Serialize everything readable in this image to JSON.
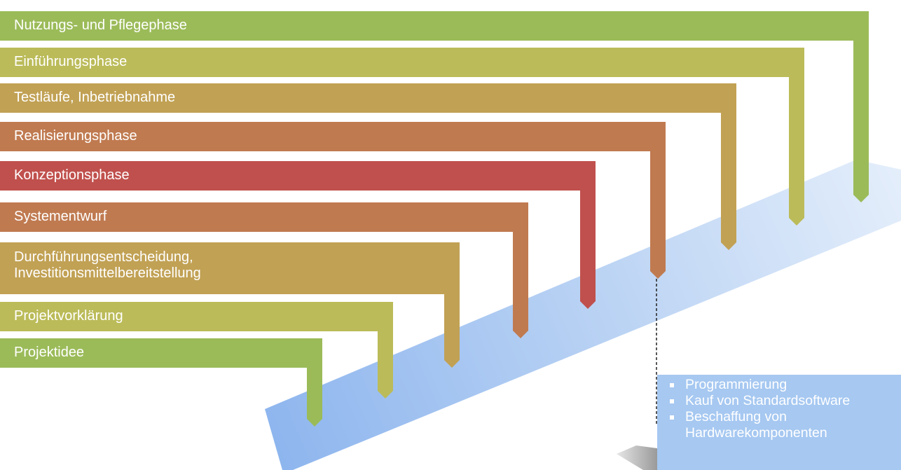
{
  "phases": [
    {
      "label": "Projektidee",
      "color": "#9bbb59"
    },
    {
      "label": "Projektvorklärung",
      "color": "#bbbb59"
    },
    {
      "label": "Durchführungsentscheidung,",
      "label_line2": "Investitionsmittelbereitstellung",
      "color": "#c1a154"
    },
    {
      "label": "Systementwurf",
      "color": "#c07a50"
    },
    {
      "label": "Konzeptionsphase",
      "color": "#c0504d"
    },
    {
      "label": "Realisierungsphase",
      "color": "#c07a50"
    },
    {
      "label": "Testläufe, Inbetriebnahme",
      "color": "#c1a154"
    },
    {
      "label": "Einführungsphase",
      "color": "#bbbb59"
    },
    {
      "label": "Nutzungs- und Pflegephase",
      "color": "#9bbb59"
    }
  ],
  "detail_box": {
    "items": [
      {
        "text": "Programmierung"
      },
      {
        "text": "Kauf von Standardsoftware"
      },
      {
        "text": "Beschaffung von",
        "text_line2": "Hardwarekomponenten"
      }
    ]
  }
}
